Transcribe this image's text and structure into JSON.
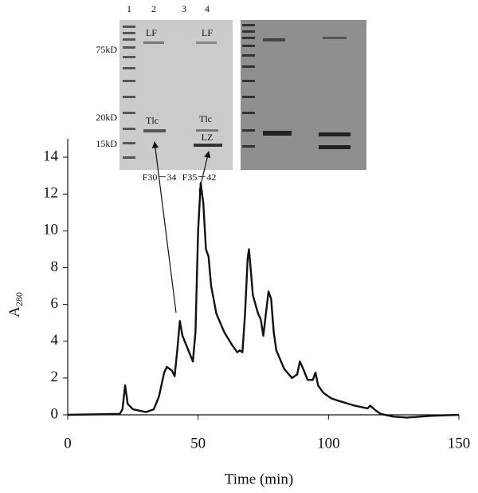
{
  "chart_data": {
    "type": "line",
    "xlabel": "Time (min)",
    "ylabel": "A",
    "ylabel_subscript": "280",
    "xlim": [
      0,
      150
    ],
    "ylim": [
      0,
      15
    ],
    "xticks": [
      0,
      50,
      100,
      150
    ],
    "yticks": [
      0,
      2,
      4,
      6,
      8,
      10,
      12,
      14
    ],
    "color": "#111111",
    "x": [
      0,
      20,
      21,
      22,
      23,
      25,
      30,
      33,
      35,
      37,
      38,
      40,
      41,
      42,
      43,
      44,
      46,
      48,
      49,
      50,
      51,
      52,
      53,
      54,
      55,
      57,
      60,
      63,
      65,
      66,
      67,
      68,
      69,
      69.5,
      70,
      71,
      73,
      74,
      75,
      76,
      77,
      78,
      79,
      80,
      83,
      86,
      88,
      89,
      90,
      92,
      94,
      95,
      96,
      98,
      100,
      101,
      103,
      110,
      115,
      116,
      118,
      120,
      125,
      130,
      140,
      150
    ],
    "values": [
      0,
      0.05,
      0.3,
      1.6,
      0.6,
      0.3,
      0.15,
      0.3,
      1.0,
      2.3,
      2.6,
      2.4,
      2.1,
      3.5,
      5.1,
      4.3,
      3.6,
      2.9,
      4.5,
      10,
      12.6,
      11.5,
      9,
      8.6,
      7.0,
      5.5,
      4.5,
      3.8,
      3.4,
      3.5,
      3.4,
      5.5,
      8.5,
      9.0,
      8.2,
      6.5,
      5.5,
      5.2,
      4.3,
      5.5,
      6.7,
      6.3,
      4.5,
      3.5,
      2.5,
      2.0,
      2.2,
      2.9,
      2.6,
      1.9,
      1.9,
      2.3,
      1.6,
      1.2,
      1.0,
      0.9,
      0.8,
      0.5,
      0.35,
      0.5,
      0.25,
      0.05,
      -0.1,
      -0.15,
      -0.05,
      0
    ],
    "inset": {
      "lanes": [
        "1",
        "2",
        "3",
        "4"
      ],
      "markers": [
        "75kD",
        "20kD",
        "15kD"
      ],
      "bands": [
        "LF",
        "LF",
        "Tlc",
        "Tlc",
        "LZ"
      ],
      "fractions": [
        "F30－34",
        "F35－42"
      ]
    }
  }
}
